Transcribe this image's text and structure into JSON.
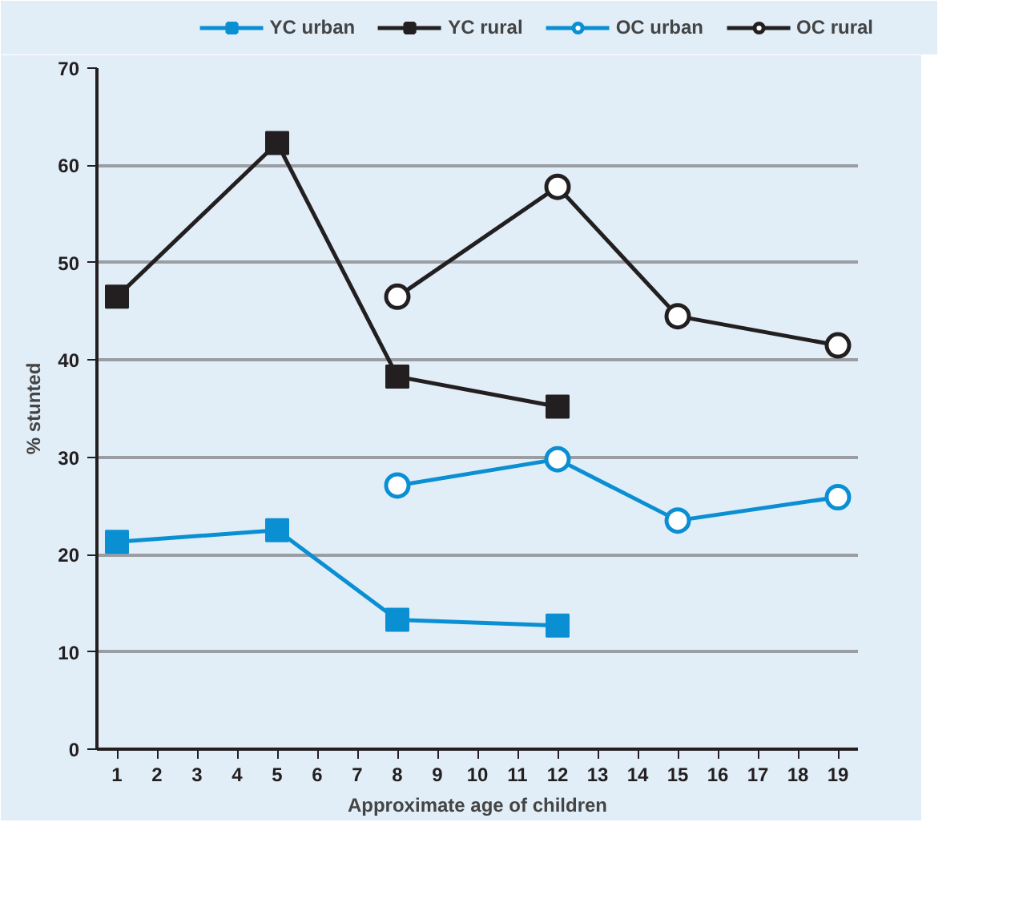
{
  "chart_data": {
    "type": "line",
    "xlabel": "Approximate age of children",
    "ylabel": "% stunted",
    "xlim": [
      0.5,
      19.5
    ],
    "xticks": [
      1,
      2,
      3,
      4,
      5,
      6,
      7,
      8,
      9,
      10,
      11,
      12,
      13,
      14,
      15,
      16,
      17,
      18,
      19
    ],
    "ylim": [
      0,
      70
    ],
    "yticks": [
      0,
      10,
      20,
      30,
      40,
      50,
      60,
      70
    ],
    "grid": "y",
    "legend": "top",
    "series": [
      {
        "name": "YC urban",
        "color": "#0b8fd3",
        "marker": "square",
        "x": [
          1,
          5,
          8,
          12
        ],
        "values": [
          21.3,
          22.5,
          13.3,
          12.7
        ]
      },
      {
        "name": "YC rural",
        "color": "#231f20",
        "marker": "square",
        "x": [
          1,
          5,
          8,
          12
        ],
        "values": [
          46.5,
          62.3,
          38.3,
          35.2
        ]
      },
      {
        "name": "OC urban",
        "color": "#0b8fd3",
        "marker": "circle",
        "x": [
          8,
          12,
          15,
          19
        ],
        "values": [
          27.1,
          29.8,
          23.5,
          25.9
        ]
      },
      {
        "name": "OC rural",
        "color": "#231f20",
        "marker": "circle",
        "x": [
          8,
          12,
          15,
          19
        ],
        "values": [
          46.5,
          57.8,
          44.5,
          41.5
        ]
      }
    ]
  }
}
